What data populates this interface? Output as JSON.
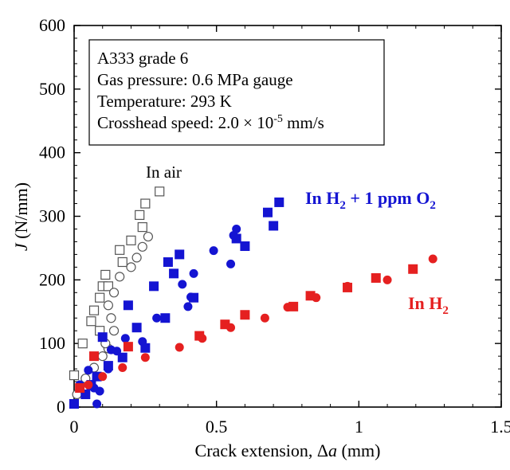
{
  "chart_data": {
    "type": "scatter",
    "title": "",
    "xlabel": "Crack extension, Δa (mm)",
    "ylabel": "J (N/mm)",
    "xlim": [
      0,
      1.5
    ],
    "ylim": [
      0,
      600
    ],
    "xticks": [
      "0",
      "0.5",
      "1",
      "1.5"
    ],
    "yticks": [
      "0",
      "100",
      "200",
      "300",
      "400",
      "500",
      "600"
    ],
    "grid": false,
    "info_box": [
      "A333 grade 6",
      "Gas pressure: 0.6 MPa gauge",
      "Temperature: 293 K",
      "Crosshead speed: 2.0 × 10-5 mm/s"
    ],
    "series": [
      {
        "name": "In air",
        "marker": "square-open",
        "color": "#555555",
        "points": [
          [
            0.0,
            50
          ],
          [
            0.03,
            100
          ],
          [
            0.06,
            135
          ],
          [
            0.07,
            152
          ],
          [
            0.09,
            172
          ],
          [
            0.1,
            190
          ],
          [
            0.11,
            208
          ],
          [
            0.12,
            190
          ],
          [
            0.17,
            228
          ],
          [
            0.2,
            262
          ],
          [
            0.23,
            302
          ],
          [
            0.24,
            283
          ],
          [
            0.25,
            320
          ],
          [
            0.3,
            339
          ],
          [
            0.16,
            247
          ],
          [
            0.09,
            120
          ]
        ]
      },
      {
        "name": "In air",
        "marker": "circle-open",
        "color": "#555555",
        "points": [
          [
            0.01,
            20
          ],
          [
            0.04,
            45
          ],
          [
            0.07,
            62
          ],
          [
            0.1,
            80
          ],
          [
            0.12,
            92
          ],
          [
            0.14,
            120
          ],
          [
            0.13,
            140
          ],
          [
            0.12,
            160
          ],
          [
            0.14,
            180
          ],
          [
            0.16,
            205
          ],
          [
            0.2,
            220
          ],
          [
            0.22,
            235
          ],
          [
            0.24,
            252
          ],
          [
            0.26,
            268
          ],
          [
            0.11,
            100
          ]
        ]
      },
      {
        "name": "In H2 + 1 ppm O2",
        "marker": "square-filled",
        "color": "#1414d2",
        "points": [
          [
            0.0,
            5
          ],
          [
            0.04,
            20
          ],
          [
            0.06,
            35
          ],
          [
            0.08,
            48
          ],
          [
            0.1,
            110
          ],
          [
            0.12,
            65
          ],
          [
            0.17,
            78
          ],
          [
            0.19,
            160
          ],
          [
            0.22,
            125
          ],
          [
            0.25,
            93
          ],
          [
            0.28,
            190
          ],
          [
            0.32,
            140
          ],
          [
            0.33,
            228
          ],
          [
            0.35,
            210
          ],
          [
            0.37,
            240
          ],
          [
            0.42,
            172
          ],
          [
            0.57,
            265
          ],
          [
            0.6,
            253
          ],
          [
            0.68,
            306
          ],
          [
            0.7,
            285
          ],
          [
            0.72,
            322
          ]
        ]
      },
      {
        "name": "In H2 + 1 ppm O2",
        "marker": "circle-filled",
        "color": "#1414d2",
        "points": [
          [
            0.02,
            35
          ],
          [
            0.05,
            58
          ],
          [
            0.07,
            30
          ],
          [
            0.09,
            25
          ],
          [
            0.08,
            5
          ],
          [
            0.12,
            60
          ],
          [
            0.13,
            90
          ],
          [
            0.15,
            88
          ],
          [
            0.18,
            108
          ],
          [
            0.24,
            103
          ],
          [
            0.29,
            140
          ],
          [
            0.38,
            193
          ],
          [
            0.4,
            158
          ],
          [
            0.41,
            173
          ],
          [
            0.42,
            210
          ],
          [
            0.49,
            246
          ],
          [
            0.55,
            225
          ],
          [
            0.56,
            270
          ],
          [
            0.57,
            280
          ]
        ]
      },
      {
        "name": "In H2",
        "marker": "square-filled",
        "color": "#e52020",
        "points": [
          [
            0.02,
            30
          ],
          [
            0.07,
            80
          ],
          [
            0.19,
            95
          ],
          [
            0.44,
            112
          ],
          [
            0.53,
            130
          ],
          [
            0.6,
            145
          ],
          [
            0.77,
            158
          ],
          [
            0.83,
            175
          ],
          [
            0.96,
            188
          ],
          [
            1.06,
            203
          ],
          [
            1.19,
            217
          ]
        ]
      },
      {
        "name": "In H2",
        "marker": "circle-filled",
        "color": "#e52020",
        "points": [
          [
            0.05,
            35
          ],
          [
            0.1,
            48
          ],
          [
            0.17,
            62
          ],
          [
            0.25,
            78
          ],
          [
            0.37,
            94
          ],
          [
            0.45,
            108
          ],
          [
            0.55,
            125
          ],
          [
            0.67,
            140
          ],
          [
            0.75,
            157
          ],
          [
            0.85,
            172
          ],
          [
            0.96,
            190
          ],
          [
            1.1,
            200
          ],
          [
            1.26,
            233
          ]
        ]
      }
    ],
    "annotations": [
      {
        "text": "In air",
        "color": "#000000"
      },
      {
        "text": "In H",
        "sub1": "2",
        "mid": " + 1 ppm O",
        "sub2": "2",
        "color": "#1414d2"
      },
      {
        "text": "In H",
        "sub1": "2",
        "color": "#e52020"
      }
    ]
  }
}
